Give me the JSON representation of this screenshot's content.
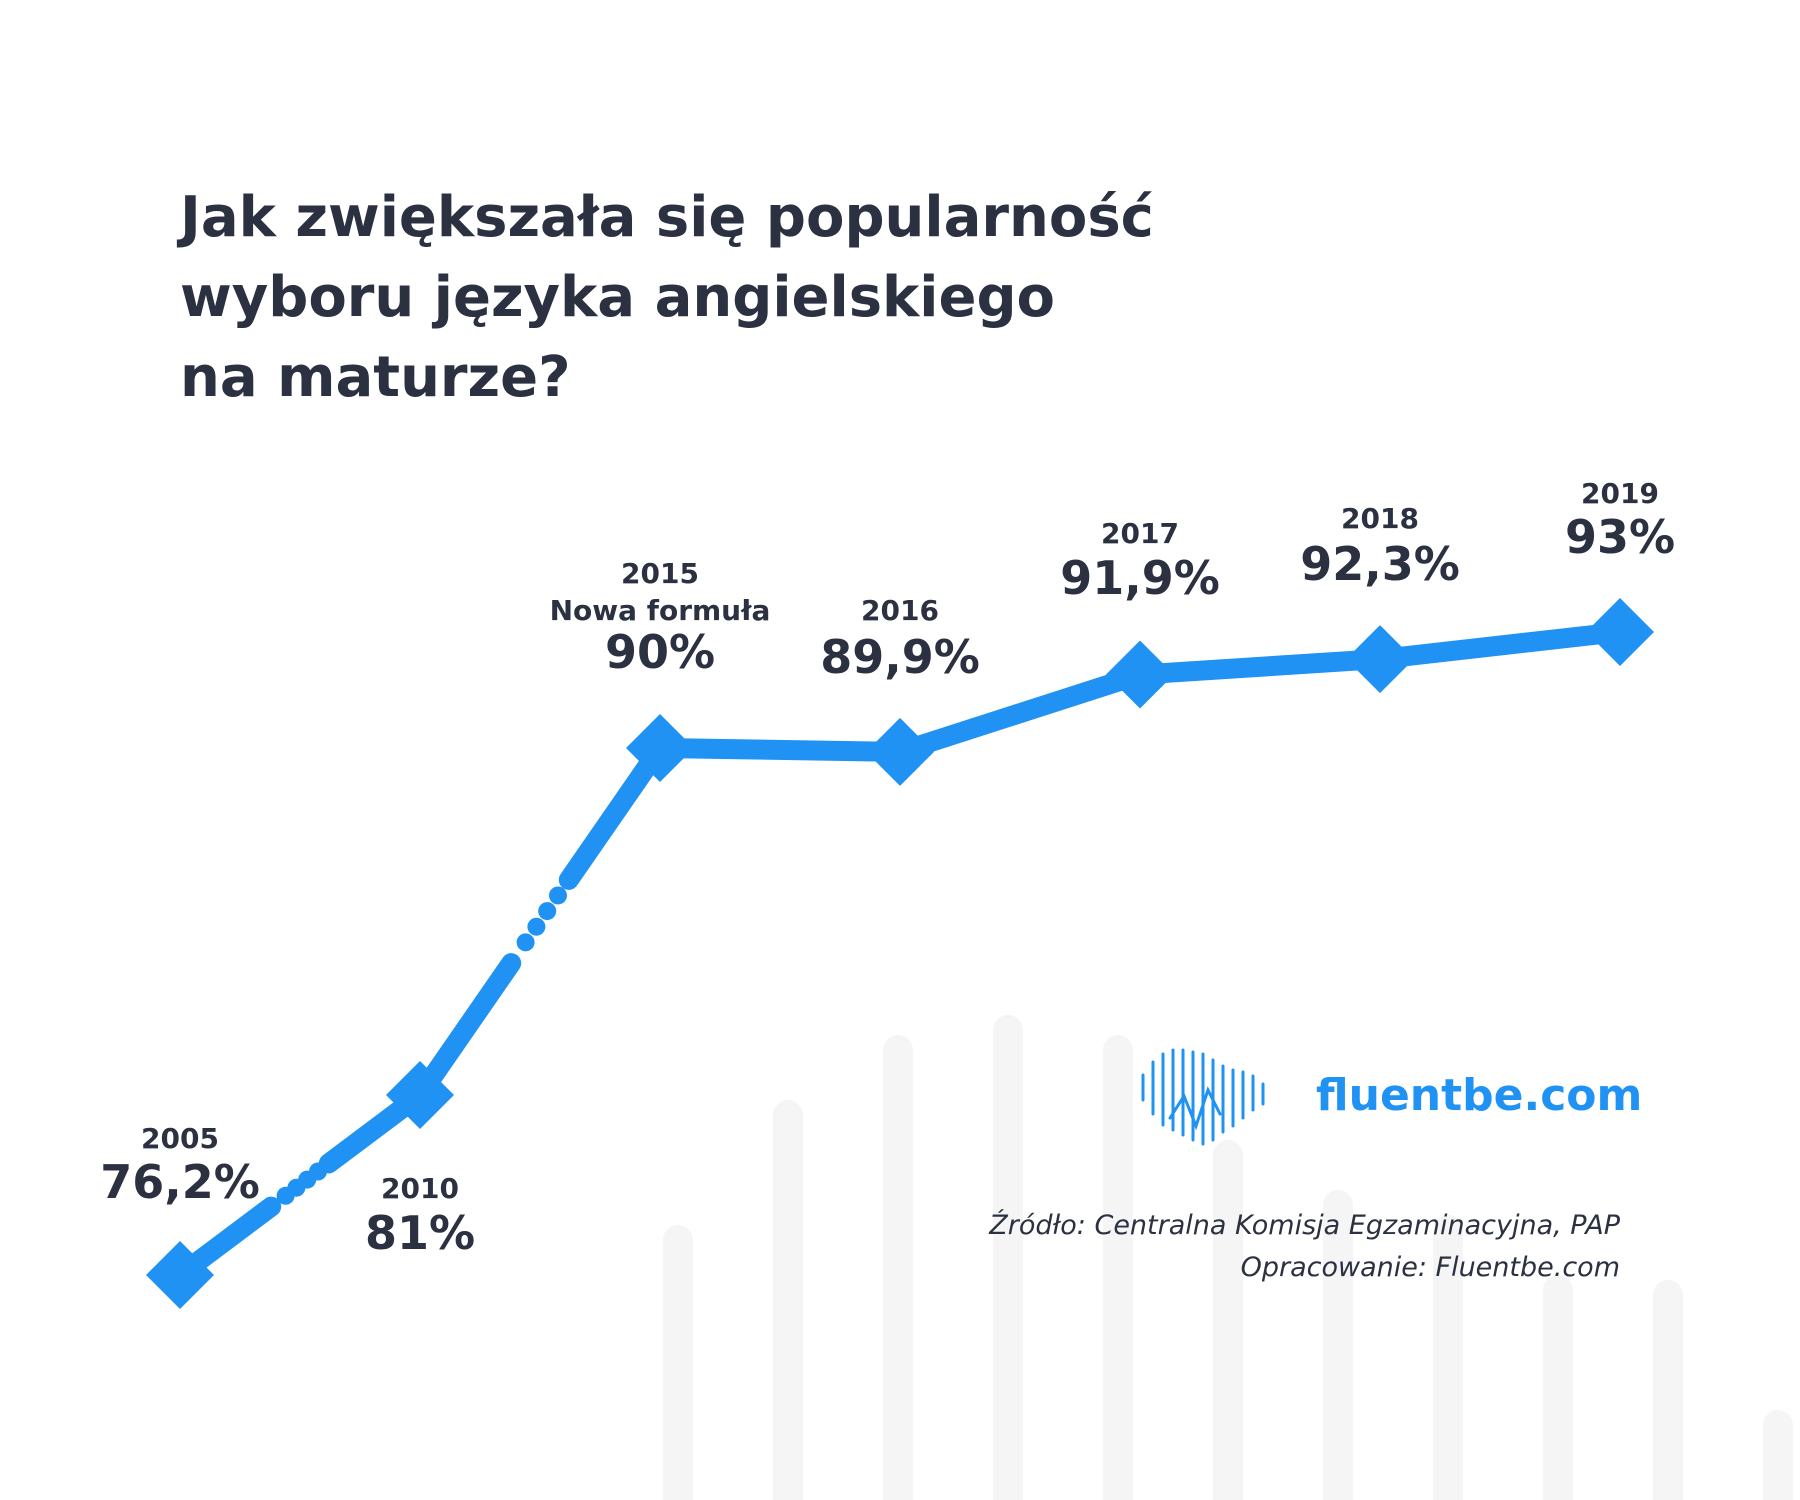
{
  "title": {
    "lines": [
      "Jak zwiększała się popularność",
      "wyboru języka angielskiego",
      "na maturze?"
    ]
  },
  "brand": {
    "name": "fluentbe.com",
    "logo_icon": "soundwave-heart-icon",
    "color": "#1f92f4"
  },
  "source": {
    "line1": "Źródło: Centralna Komisja Egzaminacyjna, PAP",
    "line2": "Opracowanie: Fluentbe.com"
  },
  "colors": {
    "series": "#1f92f4",
    "text": "#2b3141",
    "background_bars": "#f4f5f4"
  },
  "chart_data": {
    "type": "line",
    "title": "Jak zwiększała się popularność wyboru języka angielskiego na maturze?",
    "xlabel": "",
    "ylabel": "",
    "unit": "%",
    "grid": false,
    "legend": "none",
    "ylim": [
      75,
      94
    ],
    "series": [
      {
        "name": "",
        "points": [
          {
            "year": "2005",
            "value": 76.2,
            "label": "76,2%"
          },
          {
            "year": "2010",
            "value": 81,
            "label": "81%"
          },
          {
            "year": "2015",
            "value": 90,
            "label": "90%",
            "note": "Nowa formuła"
          },
          {
            "year": "2016",
            "value": 89.9,
            "label": "89,9%"
          },
          {
            "year": "2017",
            "value": 91.9,
            "label": "91,9%"
          },
          {
            "year": "2018",
            "value": 92.3,
            "label": "92,3%"
          },
          {
            "year": "2019",
            "value": 93,
            "label": "93%"
          }
        ]
      }
    ],
    "dotted_segments": [
      [
        "2005",
        "2010"
      ],
      [
        "2010",
        "2015"
      ]
    ]
  }
}
